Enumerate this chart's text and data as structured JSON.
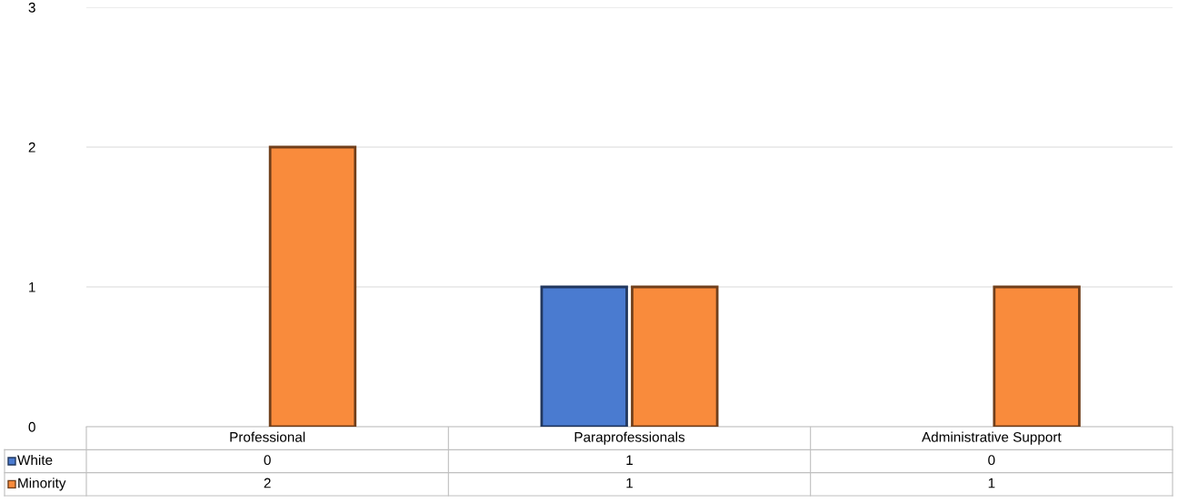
{
  "chart_data": {
    "type": "bar",
    "categories": [
      "Professional",
      "Paraprofessionals",
      "Administrative Support"
    ],
    "series": [
      {
        "name": "White",
        "color": "#4a7bd0",
        "values": [
          0,
          1,
          0
        ]
      },
      {
        "name": "Minority",
        "color": "#f98b3c",
        "values": [
          2,
          1,
          1
        ]
      }
    ],
    "ylim": [
      0,
      3
    ],
    "yticks": [
      0,
      1,
      2,
      3
    ],
    "grid": "y",
    "data_labels": true,
    "legend": "bottom"
  }
}
